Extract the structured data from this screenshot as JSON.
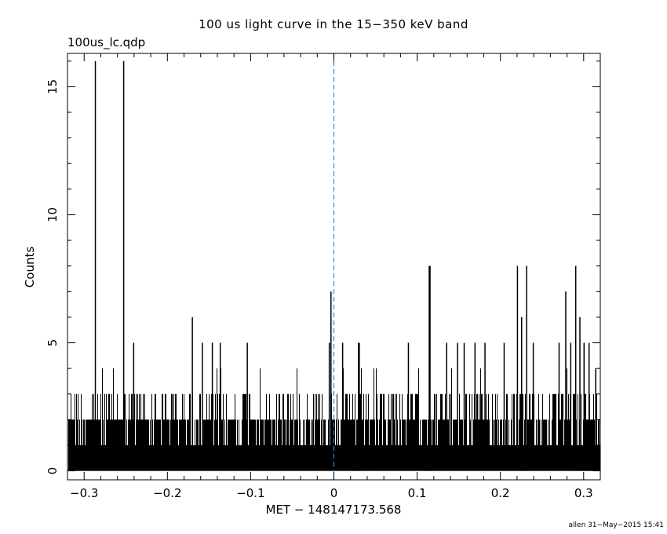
{
  "chart_data": {
    "type": "bar",
    "title": "100 us light curve in the 15−350 keV band",
    "subtitle": "100us_lc.qdp",
    "xlabel": "MET − 148147173.568",
    "ylabel": "Counts",
    "xlim": [
      -0.32,
      0.32
    ],
    "ylim": [
      -0.35,
      16.3
    ],
    "xticks": [
      -0.3,
      -0.2,
      -0.1,
      0,
      0.1,
      0.2,
      0.3
    ],
    "xtick_labels": [
      "−0.3",
      "−0.2",
      "−0.1",
      "0",
      "0.1",
      "0.2",
      "0.3"
    ],
    "yticks": [
      0,
      5,
      10,
      15
    ],
    "ytick_labels": [
      "0",
      "5",
      "10",
      "15"
    ],
    "bin_width": 0.0001,
    "trigger_line": {
      "x": 0,
      "color": "#1e8fd6",
      "style": "dashed"
    },
    "peaks": [
      {
        "x": -0.2865,
        "y": 16
      },
      {
        "x": -0.2525,
        "y": 16
      },
      {
        "x": -0.2405,
        "y": 5
      },
      {
        "x": -0.17,
        "y": 6
      },
      {
        "x": -0.158,
        "y": 5
      },
      {
        "x": -0.146,
        "y": 5
      },
      {
        "x": -0.1365,
        "y": 5
      },
      {
        "x": -0.104,
        "y": 5
      },
      {
        "x": -0.0055,
        "y": 5
      },
      {
        "x": -0.0035,
        "y": 7
      },
      {
        "x": 0.0105,
        "y": 5
      },
      {
        "x": 0.0295,
        "y": 5
      },
      {
        "x": 0.0305,
        "y": 5
      },
      {
        "x": 0.0895,
        "y": 5
      },
      {
        "x": 0.1145,
        "y": 8
      },
      {
        "x": 0.1155,
        "y": 8
      },
      {
        "x": 0.1355,
        "y": 5
      },
      {
        "x": 0.1485,
        "y": 5
      },
      {
        "x": 0.1565,
        "y": 5
      },
      {
        "x": 0.1695,
        "y": 5
      },
      {
        "x": 0.1815,
        "y": 5
      },
      {
        "x": 0.2045,
        "y": 5
      },
      {
        "x": 0.2205,
        "y": 8
      },
      {
        "x": 0.2255,
        "y": 6
      },
      {
        "x": 0.2315,
        "y": 8
      },
      {
        "x": 0.2395,
        "y": 5
      },
      {
        "x": 0.2705,
        "y": 5
      },
      {
        "x": 0.2785,
        "y": 7
      },
      {
        "x": 0.2845,
        "y": 5
      },
      {
        "x": 0.2905,
        "y": 8
      },
      {
        "x": 0.2955,
        "y": 6
      },
      {
        "x": 0.3005,
        "y": 5
      },
      {
        "x": 0.3065,
        "y": 5
      },
      {
        "x": 0.3145,
        "y": 4
      }
    ],
    "background_counts": "0–4 counts per bin (bins not individually legible)"
  },
  "footer": "allen 31−May−2015 15:41",
  "colors": {
    "axes": "#000000",
    "data": "#000000",
    "trigger_line": "#1e8fd6"
  }
}
